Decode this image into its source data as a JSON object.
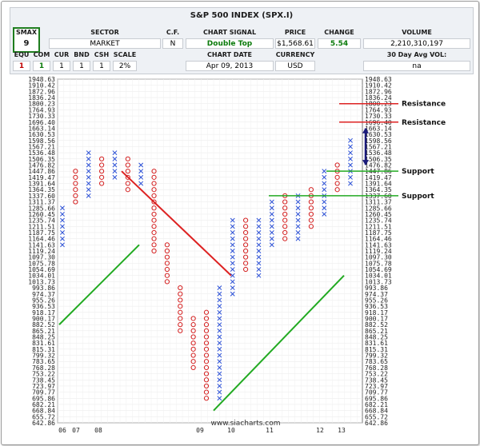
{
  "header": {
    "title": "S&P 500 INDEX (SPX.I)",
    "smax_label": "SMAX",
    "smax_value": "9",
    "sector_label": "SECTOR",
    "sector_value": "MARKET",
    "cf_label": "C.F.",
    "cf_value": "N",
    "signal_label": "CHART SIGNAL",
    "signal_value": "Double Top",
    "price_label": "PRICE",
    "price_value": "$1,568.61",
    "change_label": "CHANGE",
    "change_value": "5.54",
    "volume_label": "VOLUME",
    "volume_value": "2,210,310,197",
    "equ_label": "EQU",
    "equ_value": "1",
    "com_label": "COM",
    "com_value": "1",
    "cur_label": "CUR",
    "cur_value": "1",
    "bnd_label": "BND",
    "bnd_value": "1",
    "csh_label": "CSH",
    "csh_value": "1",
    "scale_label": "SCALE",
    "scale_value": "2%",
    "date_label": "CHART DATE",
    "date_value": "Apr 09, 2013",
    "currency_label": "CURRENCY",
    "currency_value": "USD",
    "vol30_label": "30 Day Avg VOL:",
    "vol30_value": "na",
    "extra_ones": [
      "1",
      "1",
      "1",
      "1",
      "1",
      "1"
    ]
  },
  "chart_data": {
    "type": "point-and-figure",
    "box_scale": "2%",
    "y_ticks": [
      "1948.63",
      "1910.42",
      "1872.96",
      "1836.24",
      "1800.23",
      "1764.93",
      "1730.33",
      "1696.40",
      "1663.14",
      "1630.53",
      "1598.56",
      "1567.21",
      "1536.48",
      "1506.35",
      "1476.82",
      "1447.86",
      "1419.47",
      "1391.64",
      "1364.35",
      "1337.60",
      "1311.37",
      "1285.66",
      "1260.45",
      "1235.74",
      "1211.51",
      "1187.75",
      "1164.46",
      "1141.63",
      "1119.24",
      "1097.30",
      "1075.78",
      "1054.69",
      "1034.01",
      "1013.73",
      "993.86",
      "974.37",
      "955.26",
      "936.53",
      "918.17",
      "900.17",
      "882.52",
      "865.21",
      "848.25",
      "831.61",
      "815.31",
      "799.32",
      "783.65",
      "768.28",
      "753.22",
      "738.45",
      "723.97",
      "709.77",
      "695.86",
      "682.21",
      "668.84",
      "655.72",
      "642.86"
    ],
    "x_labels": [
      "06",
      "07",
      "08",
      "09",
      "10",
      "11",
      "12",
      "13"
    ],
    "columns": [
      {
        "type": "X",
        "low": "1141.63",
        "high": "1285.66"
      },
      {
        "type": "O",
        "low": "1311.37",
        "high": "1447.86"
      },
      {
        "type": "X",
        "low": "1337.60",
        "high": "1536.48"
      },
      {
        "type": "O",
        "low": "1391.64",
        "high": "1506.35"
      },
      {
        "type": "X",
        "low": "1419.47",
        "high": "1536.48"
      },
      {
        "type": "O",
        "low": "1364.35",
        "high": "1506.35"
      },
      {
        "type": "X",
        "low": "1391.64",
        "high": "1476.82"
      },
      {
        "type": "O",
        "low": "1119.24",
        "high": "1447.86"
      },
      {
        "type": "O",
        "low": "1013.73",
        "high": "1141.63"
      },
      {
        "type": "O",
        "low": "865.21",
        "high": "993.86"
      },
      {
        "type": "O",
        "low": "768.28",
        "high": "900.17"
      },
      {
        "type": "O",
        "low": "695.86",
        "high": "918.17"
      },
      {
        "type": "X",
        "low": "695.86",
        "high": "993.86"
      },
      {
        "type": "X",
        "low": "974.37",
        "high": "1235.74"
      },
      {
        "type": "O",
        "low": "1054.69",
        "high": "1235.74"
      },
      {
        "type": "X",
        "low": "1034.01",
        "high": "1235.74"
      },
      {
        "type": "X",
        "low": "1141.63",
        "high": "1311.37"
      },
      {
        "type": "O",
        "low": "1164.46",
        "high": "1337.60"
      },
      {
        "type": "X",
        "low": "1164.46",
        "high": "1337.60"
      },
      {
        "type": "O",
        "low": "1211.51",
        "high": "1364.35"
      },
      {
        "type": "X",
        "low": "1260.45",
        "high": "1447.86"
      },
      {
        "type": "O",
        "low": "1364.35",
        "high": "1476.82"
      },
      {
        "type": "X",
        "low": "1391.64",
        "high": "1598.56"
      }
    ],
    "annotations": {
      "resistance_1": {
        "label": "Resistance",
        "value": "1800.23"
      },
      "resistance_2": {
        "label": "Resistance",
        "value": "1696.40"
      },
      "support_1": {
        "label": "Support",
        "value": "1447.86"
      },
      "support_2": {
        "label": "Support",
        "value": "1337.60"
      }
    },
    "colors": {
      "x": "#2a4fd6",
      "o": "#d42020",
      "trend_up": "#22aa22",
      "trend_down": "#dd2222",
      "levels": "#dd2222",
      "support": "#22aa22",
      "arrow": "#1a1a7a"
    },
    "watermark": "www.siacharts.com"
  }
}
